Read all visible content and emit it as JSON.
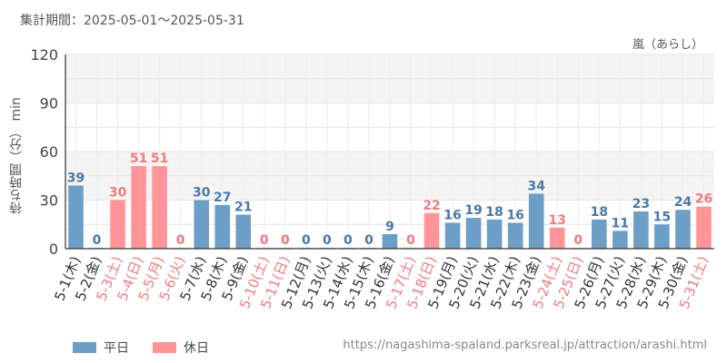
{
  "header": {
    "period_label": "集計期間：2025-05-01～2025-05-31",
    "attraction": "嵐（あらし）"
  },
  "source_url": "https://nagashima-spaland.parksreal.jp/attraction/arashi.html",
  "colors": {
    "weekday": "#6d9ec8",
    "holiday": "#ff9598",
    "weekday_label": "#4a78a8",
    "holiday_label": "#f07a80",
    "band": "#f4f4f4",
    "grid": "#e4e4e4",
    "axis": "#333333"
  },
  "chart_data": {
    "type": "bar",
    "ylabel": "待ち時間（分） min",
    "ylim": [
      0,
      120
    ],
    "yticks": [
      "0",
      "30",
      "60",
      "90",
      "120"
    ],
    "grid": true,
    "legend_position": "bottom-left",
    "categories": [
      "5-1(木)",
      "5-2(金)",
      "5-3(土)",
      "5-4(日)",
      "5-5(月)",
      "5-6(火)",
      "5-7(水)",
      "5-8(木)",
      "5-9(金)",
      "5-10(土)",
      "5-11(日)",
      "5-12(月)",
      "5-13(火)",
      "5-14(水)",
      "5-15(木)",
      "5-16(金)",
      "5-17(土)",
      "5-18(日)",
      "5-19(月)",
      "5-20(火)",
      "5-21(水)",
      "5-22(木)",
      "5-23(金)",
      "5-24(土)",
      "5-25(日)",
      "5-26(月)",
      "5-27(火)",
      "5-28(水)",
      "5-29(木)",
      "5-30(金)",
      "5-31(土)"
    ],
    "values": [
      39,
      0,
      30,
      51,
      51,
      0,
      30,
      27,
      21,
      0,
      0,
      0,
      0,
      0,
      0,
      9,
      0,
      22,
      16,
      19,
      18,
      16,
      34,
      13,
      0,
      18,
      11,
      23,
      15,
      24,
      26
    ],
    "holiday": [
      false,
      false,
      true,
      true,
      true,
      true,
      false,
      false,
      false,
      true,
      true,
      false,
      false,
      false,
      false,
      false,
      true,
      true,
      false,
      false,
      false,
      false,
      false,
      true,
      true,
      false,
      false,
      false,
      false,
      false,
      true
    ],
    "legend": [
      {
        "label": "平日",
        "color": "#6d9ec8"
      },
      {
        "label": "休日",
        "color": "#ff9598"
      }
    ]
  }
}
